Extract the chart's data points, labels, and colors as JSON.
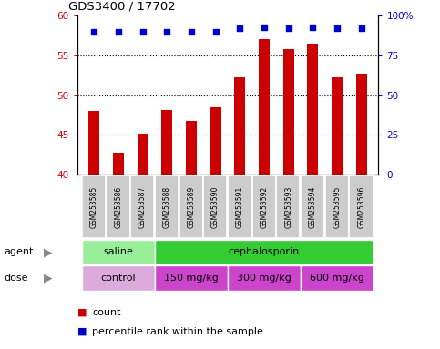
{
  "title": "GDS3400 / 17702",
  "samples": [
    "GSM253585",
    "GSM253586",
    "GSM253587",
    "GSM253588",
    "GSM253589",
    "GSM253590",
    "GSM253591",
    "GSM253592",
    "GSM253593",
    "GSM253594",
    "GSM253595",
    "GSM253596"
  ],
  "bar_values": [
    48.0,
    42.8,
    45.1,
    48.1,
    46.8,
    48.5,
    52.2,
    57.0,
    55.8,
    56.5,
    52.3,
    52.7
  ],
  "percentile_values": [
    90,
    90,
    90,
    90,
    90,
    90,
    92,
    93,
    92,
    93,
    92,
    92
  ],
  "bar_color": "#cc0000",
  "percentile_color": "#0000cc",
  "ylim": [
    40,
    60
  ],
  "yticks": [
    40,
    45,
    50,
    55,
    60
  ],
  "right_ylim": [
    0,
    100
  ],
  "right_yticks": [
    0,
    25,
    50,
    75,
    100
  ],
  "right_yticklabels": [
    "0",
    "25",
    "50",
    "75",
    "100%"
  ],
  "agent_groups": [
    {
      "label": "saline",
      "start": 0,
      "end": 3,
      "color": "#99ee99"
    },
    {
      "label": "cephalosporin",
      "start": 3,
      "end": 12,
      "color": "#33cc33"
    }
  ],
  "dose_groups": [
    {
      "label": "control",
      "start": 0,
      "end": 3,
      "color": "#ddaadd"
    },
    {
      "label": "150 mg/kg",
      "start": 3,
      "end": 6,
      "color": "#cc44cc"
    },
    {
      "label": "300 mg/kg",
      "start": 6,
      "end": 9,
      "color": "#cc44cc"
    },
    {
      "label": "600 mg/kg",
      "start": 9,
      "end": 12,
      "color": "#cc44cc"
    }
  ],
  "background_color": "#ffffff",
  "tick_label_color_left": "#cc0000",
  "tick_label_color_right": "#0000cc",
  "grid_color": "#000000",
  "xticklabel_bg": "#cccccc",
  "figsize": [
    4.83,
    3.84
  ],
  "dpi": 100
}
